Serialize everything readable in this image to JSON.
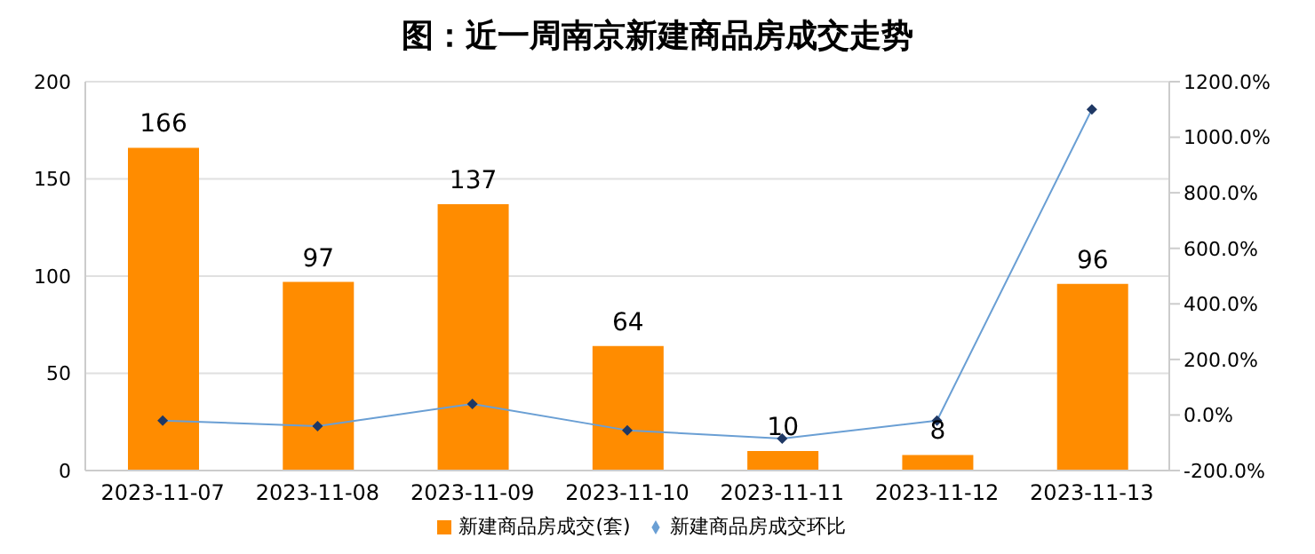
{
  "chart_data": {
    "type": "bar",
    "title": "图：近一周南京新建商品房成交走势",
    "categories": [
      "2023-11-07",
      "2023-11-08",
      "2023-11-09",
      "2023-11-10",
      "2023-11-11",
      "2023-11-12",
      "2023-11-13"
    ],
    "series": [
      {
        "name": "新建商品房成交(套)",
        "color": "#ff8c00",
        "values": [
          166,
          97,
          137,
          64,
          10,
          8,
          96
        ],
        "value_labels": [
          "166",
          "97",
          "137",
          "64",
          "10",
          "8",
          "96"
        ]
      },
      {
        "name": "新建商品房成交环比",
        "type": "line",
        "axis": "y2",
        "color": "#6a9fd4",
        "marker": "diamond",
        "values": [
          -20,
          -40,
          40,
          -55,
          -85,
          -20,
          1100
        ]
      }
    ],
    "ylim": [
      0,
      200
    ],
    "yticks": [
      0,
      50,
      100,
      150,
      200
    ],
    "y2lim": [
      -200,
      1200
    ],
    "y2ticks": [
      {
        "value": -200,
        "label": "-200.0%"
      },
      {
        "value": 0,
        "label": "0.0%"
      },
      {
        "value": 200,
        "label": "200.0%"
      },
      {
        "value": 400,
        "label": "400.0%"
      },
      {
        "value": 600,
        "label": "600.0%"
      },
      {
        "value": 800,
        "label": "800.0%"
      },
      {
        "value": 1000,
        "label": "1000.0%"
      },
      {
        "value": 1200,
        "label": "1200.0%"
      }
    ],
    "grid": "y",
    "legend": "bottom"
  }
}
